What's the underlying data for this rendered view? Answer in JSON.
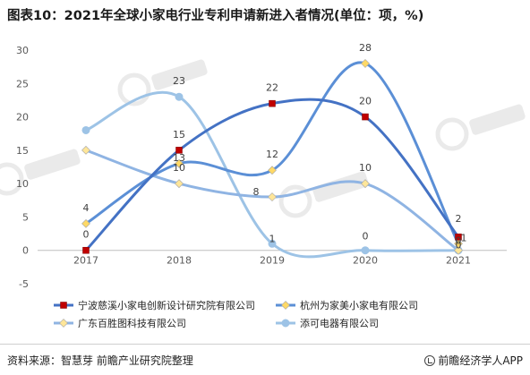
{
  "title": "图表10：2021年全球小家电行业专利申请新进入者情况(单位：项，%)",
  "footer": {
    "source": "资料来源：智慧芽 前瞻产业研究院整理",
    "brand": "前瞻经济学人APP"
  },
  "chart_data": {
    "type": "line",
    "categories": [
      "2017",
      "2018",
      "2019",
      "2020",
      "2021"
    ],
    "ylim": [
      -5,
      30
    ],
    "yticks": [
      -5,
      0,
      5,
      10,
      15,
      20,
      25,
      30
    ],
    "grid": false,
    "legend_position": "bottom",
    "series": [
      {
        "name": "宁波慈溪小家电创新设计研究院有限公司",
        "values": [
          0,
          15,
          22,
          20,
          2
        ],
        "color": "#4472c4",
        "marker": "square",
        "marker_color": "#c00000",
        "labels": [
          "0",
          "15",
          "22",
          "20",
          "2"
        ]
      },
      {
        "name": "杭州为家美小家电有限公司",
        "values": [
          4,
          13,
          12,
          28,
          1
        ],
        "color": "#5b8fd6",
        "marker": "diamond",
        "marker_color": "#ffd966",
        "labels": [
          "4",
          "13",
          "12",
          "28",
          "1"
        ]
      },
      {
        "name": "广东百胜图科技有限公司",
        "values": [
          15,
          10,
          8,
          10,
          0
        ],
        "color": "#8fb4e3",
        "marker": "diamond",
        "marker_color": "#ffe699",
        "labels": [
          "",
          "10",
          "8",
          "10",
          "0"
        ]
      },
      {
        "name": "添可电器有限公司",
        "values": [
          18,
          23,
          1,
          0,
          0
        ],
        "color": "#9dc3e6",
        "marker": "circle",
        "marker_color": "#9dc3e6",
        "labels": [
          "",
          "23",
          "1",
          "0",
          "0"
        ]
      }
    ]
  }
}
